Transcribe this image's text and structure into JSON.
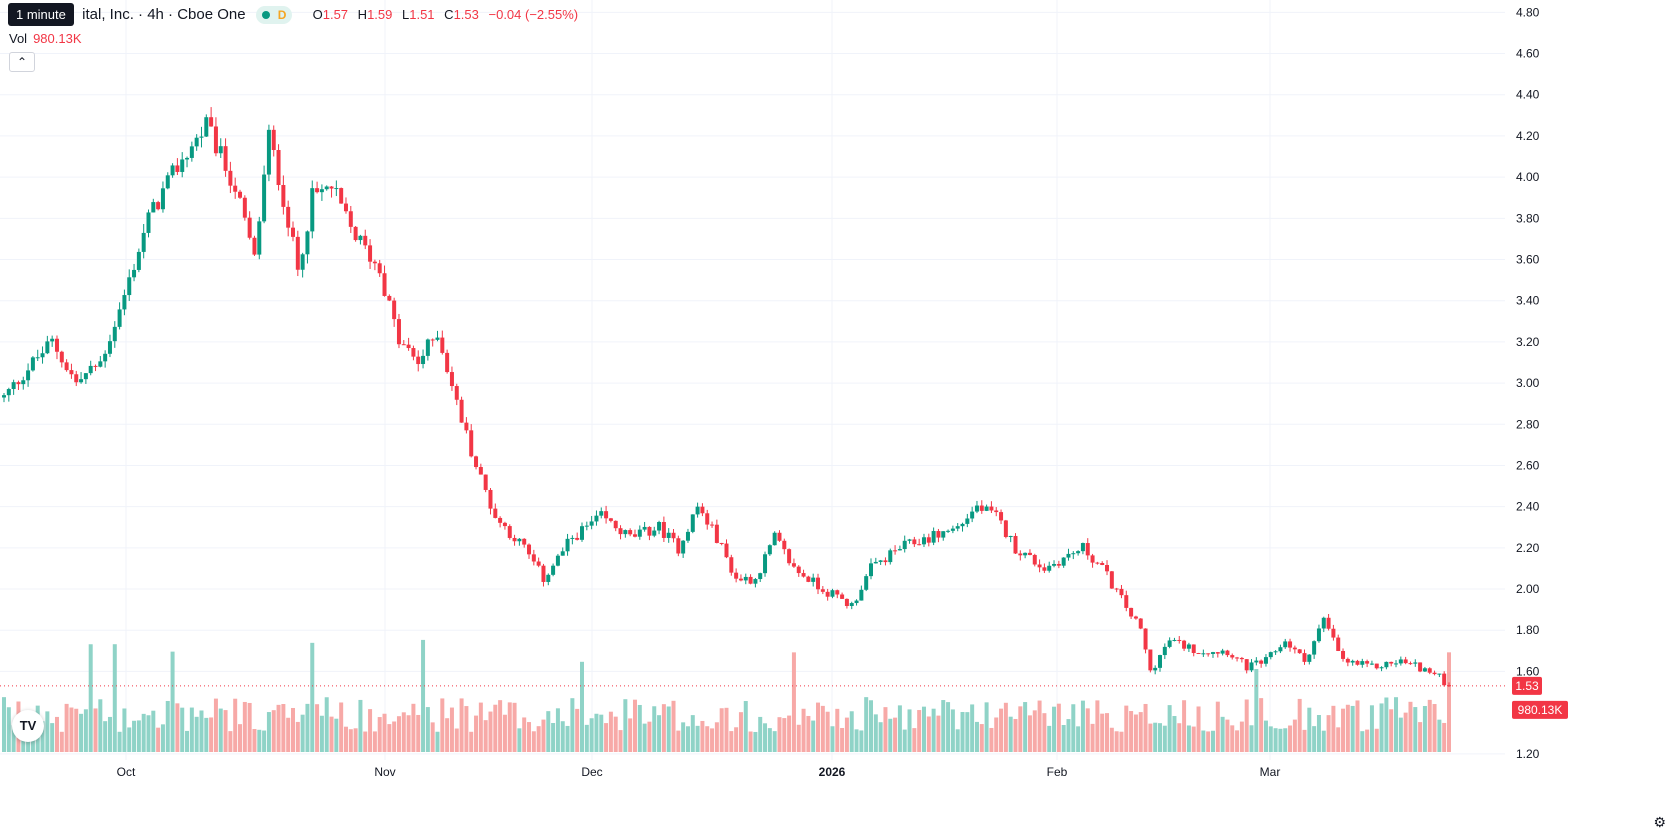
{
  "header": {
    "tooltip": "1 minute",
    "title": "ital, Inc. · 4h · Cboe One",
    "status_letter": "D",
    "ohlc": {
      "o_label": "O",
      "o": "1.57",
      "h_label": "H",
      "h": "1.59",
      "l_label": "L",
      "l": "1.51",
      "c_label": "C",
      "c": "1.53",
      "change": "−0.04 (−2.55%)"
    },
    "vol_label": "Vol",
    "vol_value": "980.13K"
  },
  "colors": {
    "up": "#089981",
    "down": "#f23645",
    "up_vol": "#8fd3c7",
    "down_vol": "#f7a9a7",
    "grid": "#f0f3fa",
    "price_line": "#f23645"
  },
  "chart_data": {
    "type": "candlestick",
    "symbol_title": "ital, Inc. · 4h · Cboe One",
    "x_tick_labels": [
      "Oct",
      "Nov",
      "Dec",
      "2026",
      "Feb",
      "Mar"
    ],
    "y_tick_labels": [
      "1.20",
      "1.60",
      "1.80",
      "2.00",
      "2.20",
      "2.40",
      "2.60",
      "2.80",
      "3.00",
      "3.20",
      "3.40",
      "3.60",
      "3.80",
      "4.00",
      "4.20",
      "4.40",
      "4.60",
      "4.80"
    ],
    "ylim": [
      1.17,
      4.86
    ],
    "last_price_label": "1.53",
    "last_volume_label": "980.13K",
    "last_price": 1.53,
    "bars_per_month_approx": 42,
    "price_path": [
      {
        "t": 0,
        "p": 2.93
      },
      {
        "t": 6,
        "p": 3.1
      },
      {
        "t": 10,
        "p": 3.2
      },
      {
        "t": 15,
        "p": 3.0
      },
      {
        "t": 20,
        "p": 3.1
      },
      {
        "t": 24,
        "p": 3.35
      },
      {
        "t": 30,
        "p": 3.8
      },
      {
        "t": 36,
        "p": 4.05
      },
      {
        "t": 42,
        "p": 4.25
      },
      {
        "t": 48,
        "p": 3.95
      },
      {
        "t": 52,
        "p": 3.6
      },
      {
        "t": 55,
        "p": 4.2
      },
      {
        "t": 58,
        "p": 3.9
      },
      {
        "t": 61,
        "p": 3.55
      },
      {
        "t": 64,
        "p": 3.9
      },
      {
        "t": 68,
        "p": 3.95
      },
      {
        "t": 72,
        "p": 3.75
      },
      {
        "t": 78,
        "p": 3.55
      },
      {
        "t": 82,
        "p": 3.2
      },
      {
        "t": 86,
        "p": 3.1
      },
      {
        "t": 90,
        "p": 3.25
      },
      {
        "t": 94,
        "p": 2.9
      },
      {
        "t": 98,
        "p": 2.6
      },
      {
        "t": 102,
        "p": 2.35
      },
      {
        "t": 108,
        "p": 2.2
      },
      {
        "t": 112,
        "p": 2.05
      },
      {
        "t": 118,
        "p": 2.25
      },
      {
        "t": 124,
        "p": 2.35
      },
      {
        "t": 130,
        "p": 2.25
      },
      {
        "t": 136,
        "p": 2.3
      },
      {
        "t": 140,
        "p": 2.2
      },
      {
        "t": 144,
        "p": 2.4
      },
      {
        "t": 148,
        "p": 2.25
      },
      {
        "t": 152,
        "p": 2.05
      },
      {
        "t": 156,
        "p": 2.05
      },
      {
        "t": 160,
        "p": 2.25
      },
      {
        "t": 164,
        "p": 2.1
      },
      {
        "t": 170,
        "p": 2.0
      },
      {
        "t": 176,
        "p": 1.92
      },
      {
        "t": 180,
        "p": 2.1
      },
      {
        "t": 186,
        "p": 2.2
      },
      {
        "t": 192,
        "p": 2.25
      },
      {
        "t": 198,
        "p": 2.3
      },
      {
        "t": 202,
        "p": 2.4
      },
      {
        "t": 206,
        "p": 2.35
      },
      {
        "t": 210,
        "p": 2.2
      },
      {
        "t": 216,
        "p": 2.1
      },
      {
        "t": 220,
        "p": 2.15
      },
      {
        "t": 224,
        "p": 2.2
      },
      {
        "t": 228,
        "p": 2.1
      },
      {
        "t": 232,
        "p": 1.95
      },
      {
        "t": 236,
        "p": 1.8
      },
      {
        "t": 238,
        "p": 1.6
      },
      {
        "t": 242,
        "p": 1.75
      },
      {
        "t": 248,
        "p": 1.7
      },
      {
        "t": 254,
        "p": 1.7
      },
      {
        "t": 258,
        "p": 1.62
      },
      {
        "t": 262,
        "p": 1.65
      },
      {
        "t": 266,
        "p": 1.75
      },
      {
        "t": 270,
        "p": 1.65
      },
      {
        "t": 274,
        "p": 1.85
      },
      {
        "t": 278,
        "p": 1.65
      },
      {
        "t": 284,
        "p": 1.62
      },
      {
        "t": 290,
        "p": 1.65
      },
      {
        "t": 294,
        "p": 1.62
      },
      {
        "t": 298,
        "p": 1.57
      },
      {
        "t": 300,
        "p": 1.53
      }
    ]
  }
}
